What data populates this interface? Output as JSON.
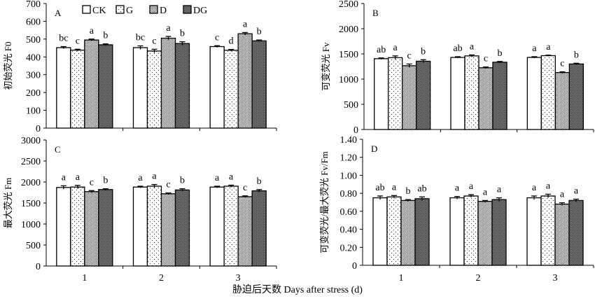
{
  "xlabel": "胁迫后天数 Days after stress (d)",
  "legend": [
    "CK",
    "G",
    "D",
    "DG"
  ],
  "chart_data": [
    {
      "type": "bar",
      "panel": "A",
      "ylabel": "初始荧光 F0",
      "ylim": [
        0,
        700
      ],
      "yticks": [
        0,
        100,
        200,
        300,
        400,
        500,
        600,
        700
      ],
      "ytick_labels": [
        "0",
        "100",
        "200",
        "300",
        "400",
        "500",
        "600",
        "700"
      ],
      "categories": [
        "1",
        "2",
        "3"
      ],
      "series": [
        {
          "name": "CK",
          "values": [
            452,
            452,
            458
          ],
          "err": [
            6,
            10,
            5
          ]
        },
        {
          "name": "G",
          "values": [
            438,
            433,
            437
          ],
          "err": [
            5,
            10,
            5
          ]
        },
        {
          "name": "D",
          "values": [
            495,
            505,
            530
          ],
          "err": [
            5,
            10,
            7
          ]
        },
        {
          "name": "DG",
          "values": [
            468,
            475,
            490
          ],
          "err": [
            5,
            10,
            5
          ]
        }
      ],
      "letters": [
        [
          "bc",
          "c",
          "a",
          "b"
        ],
        [
          "bc",
          "c",
          "a",
          "b"
        ],
        [
          "c",
          "d",
          "a",
          "b"
        ]
      ],
      "show_legend": true
    },
    {
      "type": "bar",
      "panel": "B",
      "ylabel": "可变荧光 Fv",
      "ylim": [
        0,
        2500
      ],
      "yticks": [
        0,
        500,
        1000,
        1500,
        2000,
        2500
      ],
      "ytick_labels": [
        "0",
        "500",
        "1000",
        "1500",
        "2000",
        "2500"
      ],
      "categories": [
        "1",
        "2",
        "3"
      ],
      "series": [
        {
          "name": "CK",
          "values": [
            1405,
            1430,
            1430
          ],
          "err": [
            15,
            15,
            15
          ]
        },
        {
          "name": "G",
          "values": [
            1425,
            1460,
            1465
          ],
          "err": [
            35,
            20,
            10
          ]
        },
        {
          "name": "D",
          "values": [
            1265,
            1225,
            1130
          ],
          "err": [
            35,
            15,
            15
          ]
        },
        {
          "name": "DG",
          "values": [
            1355,
            1335,
            1300
          ],
          "err": [
            30,
            15,
            15
          ]
        }
      ],
      "letters": [
        [
          "ab",
          "a",
          "c",
          "b"
        ],
        [
          "ab",
          "a",
          "c",
          "b"
        ],
        [
          "a",
          "a",
          "c",
          "b"
        ]
      ]
    },
    {
      "type": "bar",
      "panel": "C",
      "ylabel": "最大荧光 Fm",
      "ylim": [
        0,
        3000
      ],
      "yticks": [
        0,
        500,
        1000,
        1500,
        2000,
        2500,
        3000
      ],
      "ytick_labels": [
        "0",
        "500",
        "1000",
        "1500",
        "2000",
        "2500",
        "3000"
      ],
      "categories": [
        "1",
        "2",
        "3"
      ],
      "series": [
        {
          "name": "CK",
          "values": [
            1870,
            1880,
            1880
          ],
          "err": [
            40,
            20,
            20
          ]
        },
        {
          "name": "G",
          "values": [
            1880,
            1900,
            1900
          ],
          "err": [
            40,
            40,
            25
          ]
        },
        {
          "name": "D",
          "values": [
            1770,
            1720,
            1650
          ],
          "err": [
            25,
            20,
            20
          ]
        },
        {
          "name": "DG",
          "values": [
            1820,
            1810,
            1790
          ],
          "err": [
            20,
            30,
            30
          ]
        }
      ],
      "letters": [
        [
          "a",
          "a",
          "c",
          "b"
        ],
        [
          "a",
          "a",
          "c",
          "b"
        ],
        [
          "a",
          "a",
          "c",
          "b"
        ]
      ]
    },
    {
      "type": "bar",
      "panel": "D",
      "ylabel": "可变荧光/最大荧光 Fv/Fm",
      "ylim": [
        0,
        1.4
      ],
      "yticks": [
        0,
        0.2,
        0.4,
        0.6,
        0.8,
        1.0,
        1.2,
        1.4
      ],
      "ytick_labels": [
        "0",
        "0.20",
        "0.40",
        "0.60",
        "0.80",
        "1.00",
        "1.20",
        "1.40"
      ],
      "categories": [
        "1",
        "2",
        "3"
      ],
      "series": [
        {
          "name": "CK",
          "values": [
            0.75,
            0.75,
            0.75
          ],
          "err": [
            0.02,
            0.015,
            0.02
          ]
        },
        {
          "name": "G",
          "values": [
            0.76,
            0.77,
            0.77
          ],
          "err": [
            0.015,
            0.015,
            0.02
          ]
        },
        {
          "name": "D",
          "values": [
            0.72,
            0.71,
            0.68
          ],
          "err": [
            0.01,
            0.01,
            0.015
          ]
        },
        {
          "name": "DG",
          "values": [
            0.74,
            0.73,
            0.72
          ],
          "err": [
            0.02,
            0.02,
            0.015
          ]
        }
      ],
      "letters": [
        [
          "ab",
          "a",
          "b",
          "ab"
        ],
        [
          "a",
          "a",
          "a",
          "a"
        ],
        [
          "a",
          "a",
          "a",
          "a"
        ]
      ]
    }
  ]
}
